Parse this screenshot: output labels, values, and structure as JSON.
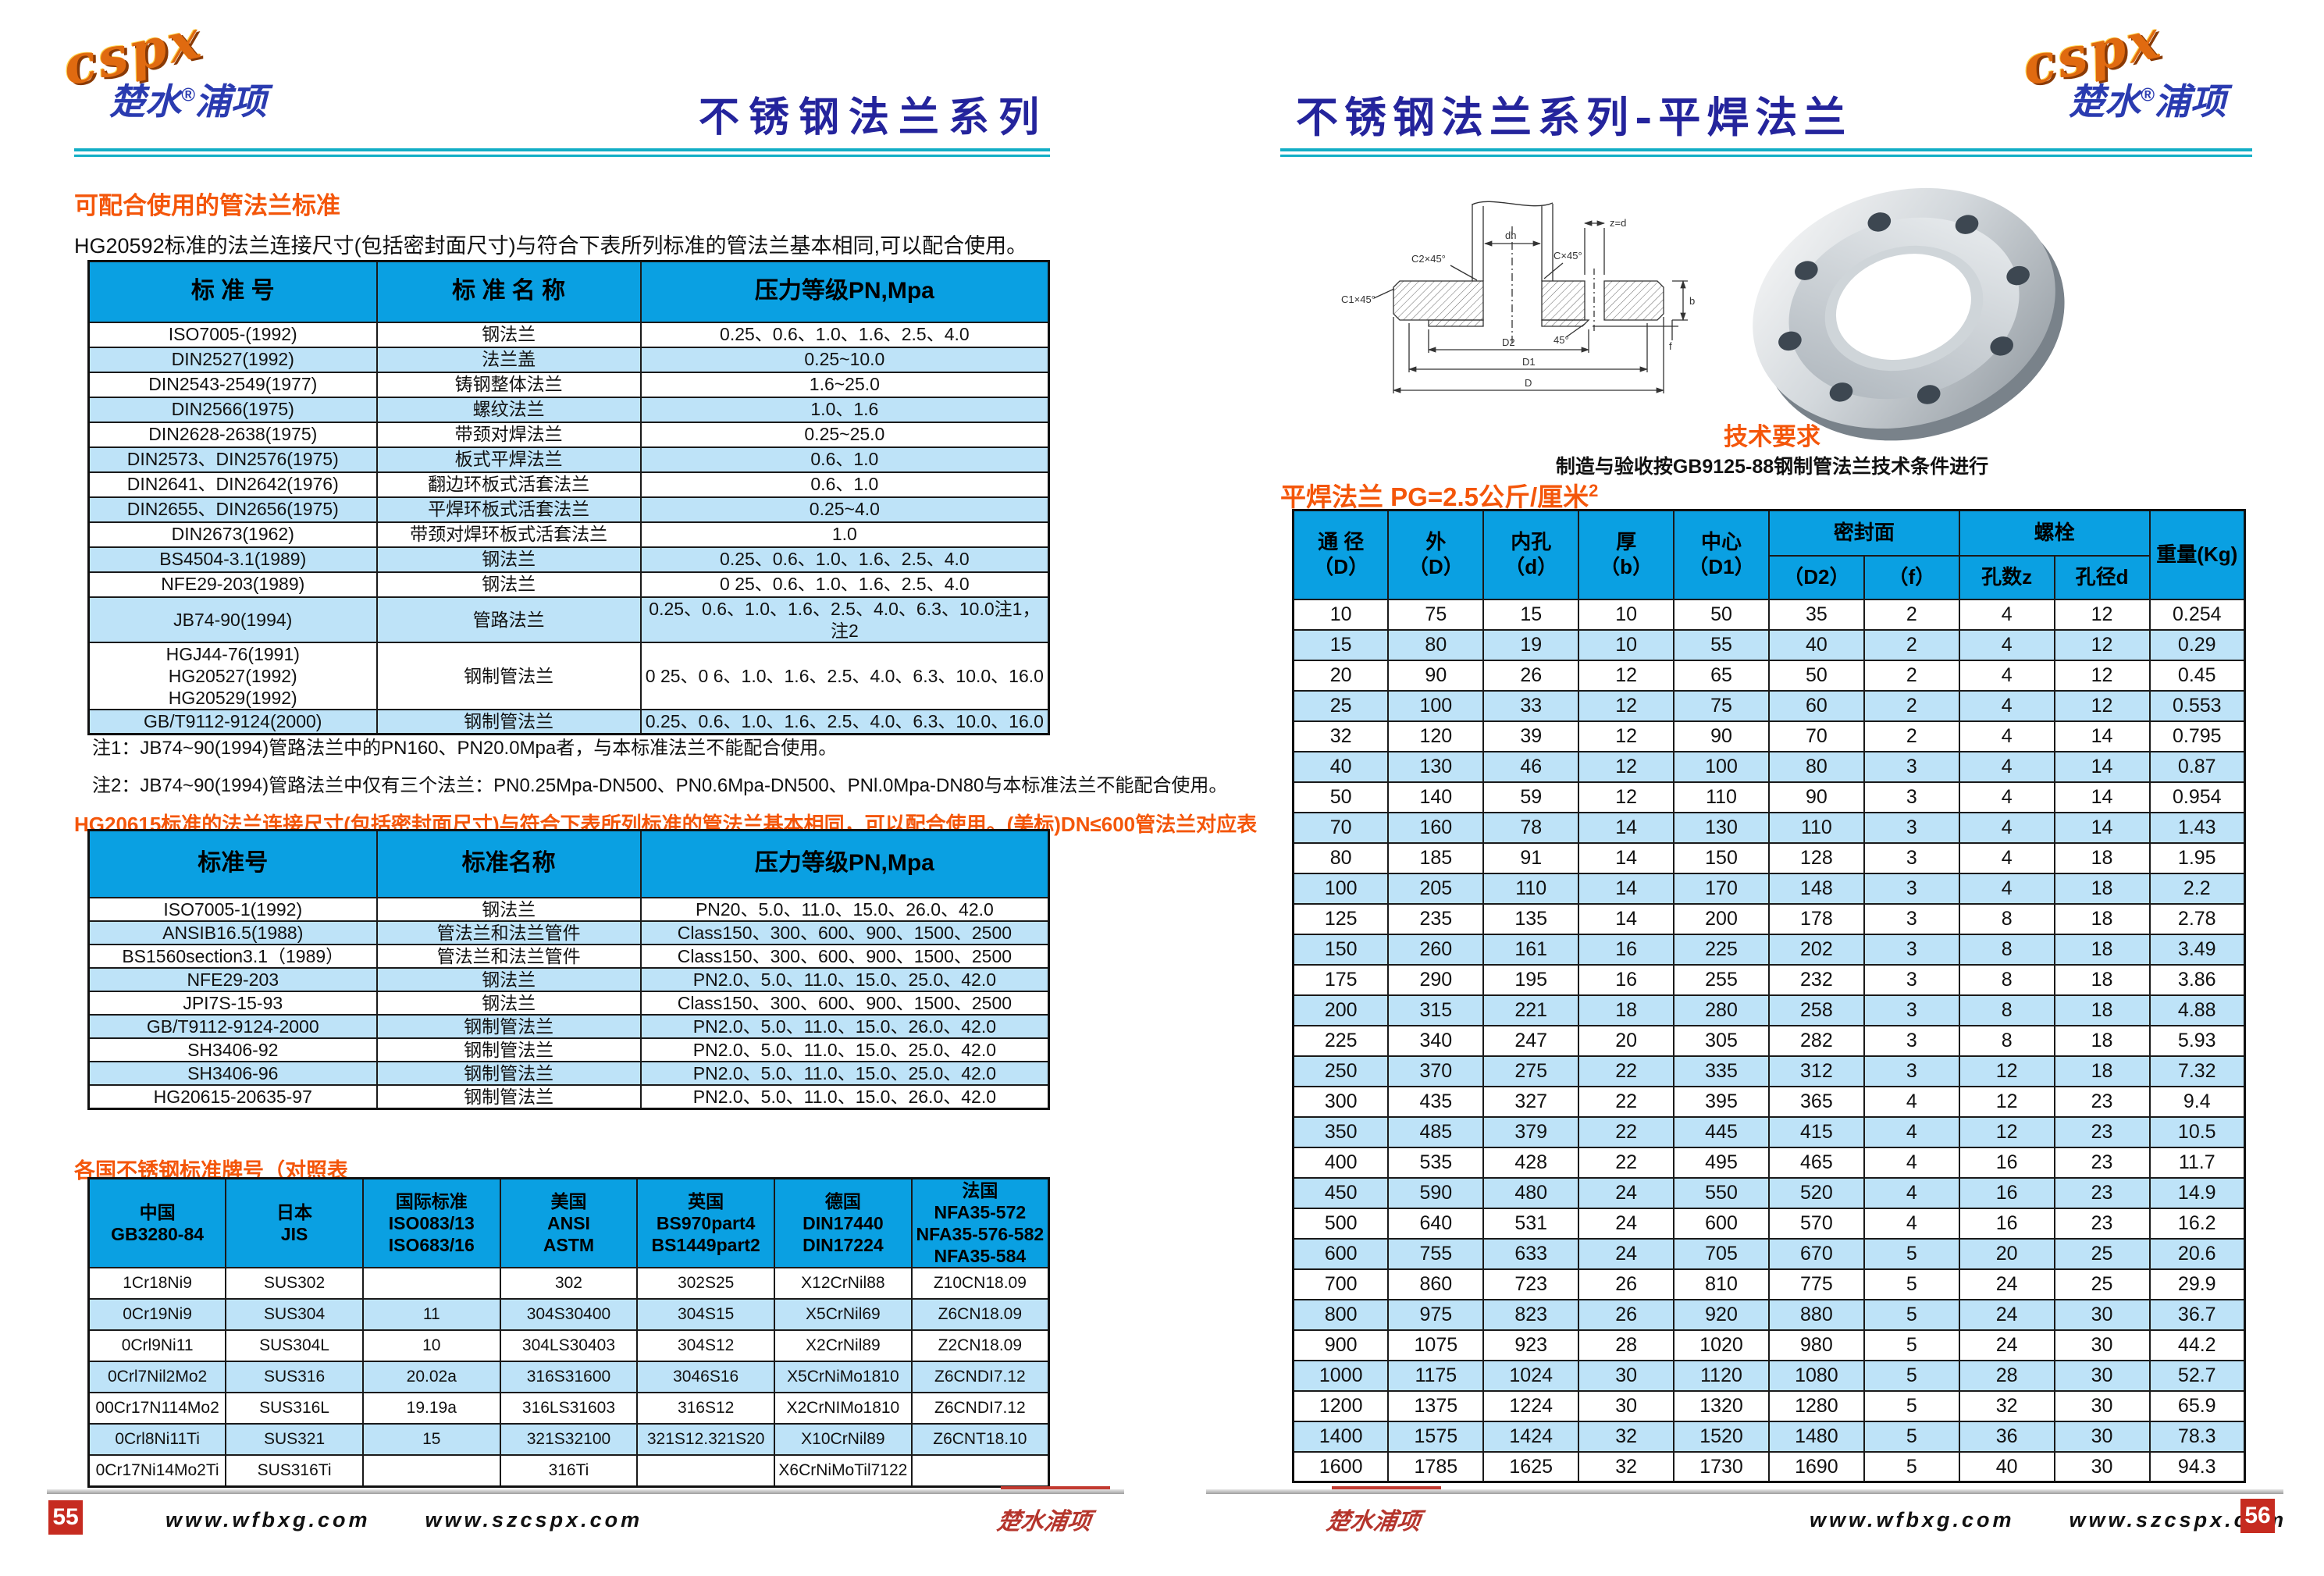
{
  "brand": {
    "latin": "cspx",
    "cn_left": "楚水",
    "reg": "®",
    "cn_right": "浦项",
    "script": "楚水浦项"
  },
  "left_page": {
    "title": "不锈钢法兰系列",
    "section1_heading": "可配合使用的管法兰标准",
    "section1_desc": "HG20592标准的法兰连接尺寸(包括密封面尺寸)与符合下表所列标准的管法兰基本相同,可以配合使用。",
    "table1": {
      "headers": [
        "标  准  号",
        "标 准 名 称",
        "压力等级PN,Mpa"
      ],
      "rows": [
        [
          "ISO7005-(1992)",
          "钢法兰",
          "0.25、0.6、1.0、1.6、2.5、4.0"
        ],
        [
          "DIN2527(1992)",
          "法兰盖",
          "0.25~10.0"
        ],
        [
          "DIN2543-2549(1977)",
          "铸钢整体法兰",
          "1.6~25.0"
        ],
        [
          "DIN2566(1975)",
          "螺纹法兰",
          "1.0、1.6"
        ],
        [
          "DIN2628-2638(1975)",
          "带颈对焊法兰",
          "0.25~25.0"
        ],
        [
          "DIN2573、DIN2576(1975)",
          "板式平焊法兰",
          "0.6、1.0"
        ],
        [
          "DIN2641、DIN2642(1976)",
          "翻边环板式活套法兰",
          "0.6、1.0"
        ],
        [
          "DIN2655、DIN2656(1975)",
          "平焊环板式活套法兰",
          "0.25~4.0"
        ],
        [
          "DIN2673(1962)",
          "带颈对焊环板式活套法兰",
          "1.0"
        ],
        [
          "BS4504-3.1(1989)",
          "钢法兰",
          "0.25、0.6、1.0、1.6、2.5、4.0"
        ],
        [
          "NFE29-203(1989)",
          "钢法兰",
          "0 25、0.6、1.0、1.6、2.5、4.0"
        ],
        [
          "JB74-90(1994)",
          "管路法兰",
          "0.25、0.6、1.0、1.6、2.5、4.0、6.3、10.0注1，注2"
        ],
        [
          "HGJ44-76(1991)\nHG20527(1992)\nHG20529(1992)",
          "钢制管法兰",
          "0 25、0 6、1.0、1.6、2.5、4.0、6.3、10.0、16.0"
        ],
        [
          "GB/T9112-9124(2000)",
          "钢制管法兰",
          "0.25、0.6、1.0、1.6、2.5、4.0、6.3、10.0、16.0"
        ]
      ]
    },
    "notes": [
      "注1：JB74~90(1994)管路法兰中的PN160、PN20.0Mpa者，与本标准法兰不能配合使用。",
      "注2：JB74~90(1994)管路法兰中仅有三个法兰：PN0.25Mpa-DN500、PN0.6Mpa-DN500、PNl.0Mpa-DN80与本标准法兰不能配合使用。"
    ],
    "section2_heading": "HG20615标准的法兰连接尺寸(包括密封面尺寸)与符合下表所列标准的管法兰基本相同，可以配合使用。(美标)DN≤600管法兰对应表",
    "table2": {
      "headers": [
        "标准号",
        "标准名称",
        "压力等级PN,Mpa"
      ],
      "rows": [
        [
          "ISO7005-1(1992)",
          "钢法兰",
          "PN20、5.0、11.0、15.0、26.0、42.0"
        ],
        [
          "ANSIB16.5(1988)",
          "管法兰和法兰管件",
          "Class150、300、600、900、1500、2500"
        ],
        [
          "BS1560section3.1（1989）",
          "管法兰和法兰管件",
          "Class150、300、600、900、1500、2500"
        ],
        [
          "NFE29-203",
          "钢法兰",
          "PN2.0、5.0、11.0、15.0、25.0、42.0"
        ],
        [
          "JPI7S-15-93",
          "钢法兰",
          "Class150、300、600、900、1500、2500"
        ],
        [
          "GB/T9112-9124-2000",
          "钢制管法兰",
          "PN2.0、5.0、11.0、15.0、26.0、42.0"
        ],
        [
          "SH3406-92",
          "钢制管法兰",
          "PN2.0、5.0、11.0、15.0、25.0、42.0"
        ],
        [
          "SH3406-96",
          "钢制管法兰",
          "PN2.0、5.0、11.0、15.0、25.0、42.0"
        ],
        [
          "HG20615-20635-97",
          "钢制管法兰",
          "PN2.0、5.0、11.0、15.0、26.0、42.0"
        ]
      ]
    },
    "section3_heading": "各国不锈钢标准牌号（对照表",
    "table3": {
      "headers": [
        "中国\nGB3280-84",
        "日本\nJIS",
        "国际标准\nISO083/13\nISO683/16",
        "美国\nANSI\nASTM",
        "英国\nBS970part4\nBS1449part2",
        "德国\nDIN17440\nDIN17224",
        "法国\nNFA35-572\nNFA35-576-582\nNFA35-584"
      ],
      "rows": [
        [
          "1Cr18Ni9",
          "SUS302",
          "",
          "302",
          "302S25",
          "X12CrNil88",
          "Z10CN18.09"
        ],
        [
          "0Cr19Ni9",
          "SUS304",
          "11",
          "304S30400",
          "304S15",
          "X5CrNil69",
          "Z6CN18.09"
        ],
        [
          "0Crl9Ni11",
          "SUS304L",
          "10",
          "304LS30403",
          "304S12",
          "X2CrNil89",
          "Z2CN18.09"
        ],
        [
          "0Crl7Nil2Mo2",
          "SUS316",
          "20.02a",
          "316S31600",
          "3046S16",
          "X5CrNiMo1810",
          "Z6CNDI7.12"
        ],
        [
          "00Cr17N114Mo2",
          "SUS316L",
          "19.19a",
          "316LS31603",
          "316S12",
          "X2CrNIMo1810",
          "Z6CNDI7.12"
        ],
        [
          "0Crl8Ni11Ti",
          "SUS321",
          "15",
          "321S32100",
          "321S12.321S20",
          "X10CrNil89",
          "Z6CNT18.10"
        ],
        [
          "0Cr17Ni14Mo2Ti",
          "SUS316Ti",
          "",
          "316Ti",
          "",
          "X6CrNiMoTil7122",
          ""
        ]
      ]
    },
    "footer": {
      "page": "55",
      "url1": "www.wfbxg.com",
      "url2": "www.szcspx.com"
    }
  },
  "right_page": {
    "title": "不锈钢法兰系列-平焊法兰",
    "tech_heading": "技术要求",
    "tech_text": "制造与验收按GB9125-88钢制管法兰技术条件进行",
    "flange_heading": "平焊法兰  PG=2.5公斤/厘米",
    "flange_heading_sup": "2",
    "drawing_labels": {
      "dh": "dh",
      "zd": "z=d",
      "c2": "C2×45°",
      "c": "C×45°",
      "c1": "C1×45°",
      "a45": "45°",
      "D2": "D2",
      "D1": "D1",
      "D": "D",
      "b": "b",
      "f": "f"
    },
    "flange_table": {
      "header": {
        "col1": "通 径\n（D）",
        "col2": "外\n（D）",
        "col3": "内孔\n（d）",
        "col4": "厚\n（b）",
        "col5": "中心\n（D1）",
        "seal": "密封面",
        "seal_d2": "（D2）",
        "seal_f": "（f）",
        "bolt": "螺栓",
        "bolt_z": "孔数z",
        "bolt_d": "孔径d",
        "weight": "重量(Kg)"
      },
      "rows": [
        [
          10,
          75,
          15,
          10,
          50,
          35,
          2,
          4,
          12,
          0.254
        ],
        [
          15,
          80,
          19,
          10,
          55,
          40,
          2,
          4,
          12,
          0.29
        ],
        [
          20,
          90,
          26,
          12,
          65,
          50,
          2,
          4,
          12,
          0.45
        ],
        [
          25,
          100,
          33,
          12,
          75,
          60,
          2,
          4,
          12,
          0.553
        ],
        [
          32,
          120,
          39,
          12,
          90,
          70,
          2,
          4,
          14,
          0.795
        ],
        [
          40,
          130,
          46,
          12,
          100,
          80,
          3,
          4,
          14,
          0.87
        ],
        [
          50,
          140,
          59,
          12,
          110,
          90,
          3,
          4,
          14,
          0.954
        ],
        [
          70,
          160,
          78,
          14,
          130,
          110,
          3,
          4,
          14,
          1.43
        ],
        [
          80,
          185,
          91,
          14,
          150,
          128,
          3,
          4,
          18,
          1.95
        ],
        [
          100,
          205,
          110,
          14,
          170,
          148,
          3,
          4,
          18,
          2.2
        ],
        [
          125,
          235,
          135,
          14,
          200,
          178,
          3,
          8,
          18,
          2.78
        ],
        [
          150,
          260,
          161,
          16,
          225,
          202,
          3,
          8,
          18,
          3.49
        ],
        [
          175,
          290,
          195,
          16,
          255,
          232,
          3,
          8,
          18,
          3.86
        ],
        [
          200,
          315,
          221,
          18,
          280,
          258,
          3,
          8,
          18,
          4.88
        ],
        [
          225,
          340,
          247,
          20,
          305,
          282,
          3,
          8,
          18,
          5.93
        ],
        [
          250,
          370,
          275,
          22,
          335,
          312,
          3,
          12,
          18,
          7.32
        ],
        [
          300,
          435,
          327,
          22,
          395,
          365,
          4,
          12,
          23,
          9.4
        ],
        [
          350,
          485,
          379,
          22,
          445,
          415,
          4,
          12,
          23,
          10.5
        ],
        [
          400,
          535,
          428,
          22,
          495,
          465,
          4,
          16,
          23,
          11.7
        ],
        [
          450,
          590,
          480,
          24,
          550,
          520,
          4,
          16,
          23,
          14.9
        ],
        [
          500,
          640,
          531,
          24,
          600,
          570,
          4,
          16,
          23,
          16.2
        ],
        [
          600,
          755,
          633,
          24,
          705,
          670,
          5,
          20,
          25,
          20.6
        ],
        [
          700,
          860,
          723,
          26,
          810,
          775,
          5,
          24,
          25,
          29.9
        ],
        [
          800,
          975,
          823,
          26,
          920,
          880,
          5,
          24,
          30,
          36.7
        ],
        [
          900,
          1075,
          923,
          28,
          1020,
          980,
          5,
          24,
          30,
          44.2
        ],
        [
          1000,
          1175,
          1024,
          30,
          1120,
          1080,
          5,
          28,
          30,
          52.7
        ],
        [
          1200,
          1375,
          1224,
          30,
          1320,
          1280,
          5,
          32,
          30,
          65.9
        ],
        [
          1400,
          1575,
          1424,
          32,
          1520,
          1480,
          5,
          36,
          30,
          78.3
        ],
        [
          1600,
          1785,
          1625,
          32,
          1730,
          1690,
          5,
          40,
          30,
          94.3
        ]
      ]
    },
    "footer": {
      "page": "56",
      "url1": "www.wfbxg.com",
      "url2": "www.szcspx.com"
    }
  }
}
